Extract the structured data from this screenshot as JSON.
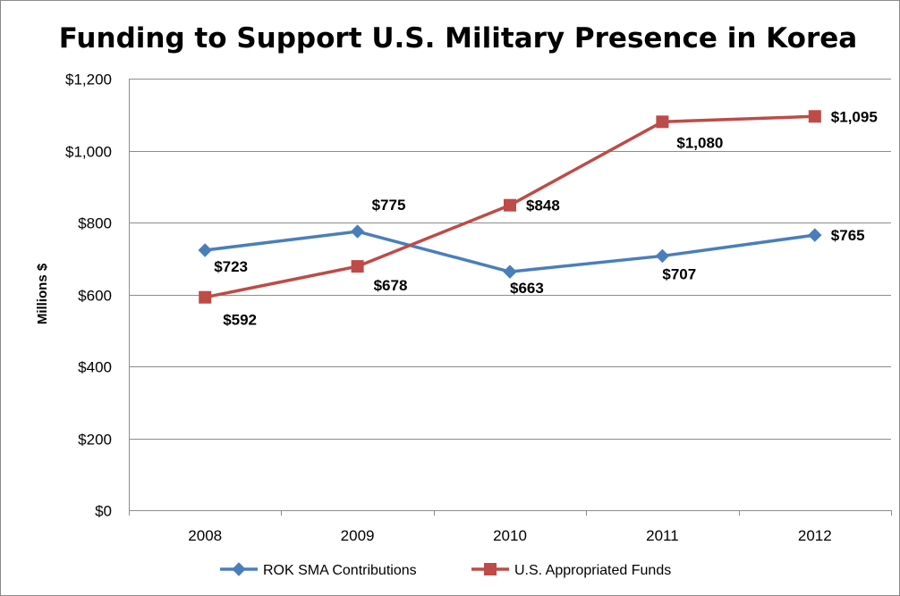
{
  "chart_data": {
    "type": "line",
    "title": "Funding to Support U.S. Military Presence in Korea",
    "xlabel": "",
    "ylabel": "Millions $",
    "categories": [
      "2008",
      "2009",
      "2010",
      "2011",
      "2012"
    ],
    "ylim": [
      0,
      1200
    ],
    "yticks": [
      0,
      200,
      400,
      600,
      800,
      1000,
      1200
    ],
    "ytick_labels": [
      "$0",
      "$200",
      "$400",
      "$600",
      "$800",
      "$1,000",
      "$1,200"
    ],
    "grid": true,
    "legend_position": "bottom",
    "series": [
      {
        "name": "ROK SMA Contributions",
        "color": "#4a7ebb",
        "marker": "diamond",
        "values": [
          723,
          775,
          663,
          707,
          765
        ],
        "labels": [
          "$723",
          "$775",
          "$663",
          "$707",
          "$765"
        ]
      },
      {
        "name": "U.S. Appropriated Funds",
        "color": "#be4b48",
        "marker": "square",
        "values": [
          592,
          678,
          848,
          1080,
          1095
        ],
        "labels": [
          "$592",
          "$678",
          "$848",
          "$1,080",
          "$1,095"
        ]
      }
    ]
  }
}
